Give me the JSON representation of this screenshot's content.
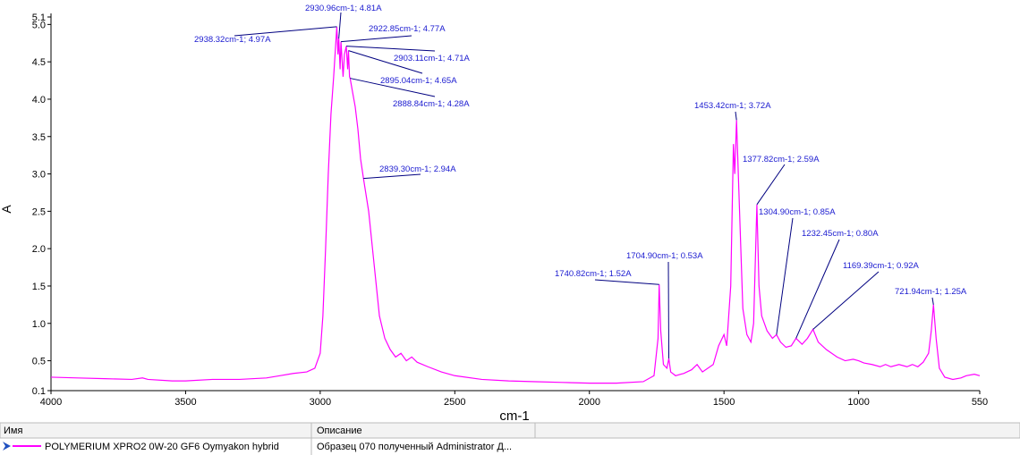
{
  "chart_data": {
    "type": "line",
    "xlabel": "cm-1",
    "ylabel": "A",
    "xlim": [
      4000,
      550
    ],
    "ylim": [
      0.1,
      5.1
    ],
    "xticks": [
      4000,
      3500,
      3000,
      2500,
      2000,
      1500,
      1000,
      550
    ],
    "yticks": [
      0.1,
      0.5,
      {
        "value": 1,
        "label": "1.0"
      },
      1.5,
      {
        "value": 2,
        "label": "2.0"
      },
      2.5,
      {
        "value": 3,
        "label": "3.0"
      },
      3.5,
      {
        "value": 4,
        "label": "4.0"
      },
      4.5,
      {
        "value": 5,
        "label": "5.0"
      },
      5.1
    ],
    "grid": false,
    "x": [
      4000,
      3900,
      3800,
      3700,
      3660,
      3640,
      3550,
      3500,
      3400,
      3300,
      3200,
      3150,
      3100,
      3050,
      3020,
      3000,
      2990,
      2980,
      2970,
      2960,
      2950,
      2938.32,
      2934,
      2930.96,
      2926,
      2922.85,
      2915,
      2910,
      2903.11,
      2898,
      2895.04,
      2891,
      2888.84,
      2880,
      2870,
      2860,
      2850,
      2839.3,
      2820,
      2800,
      2780,
      2760,
      2740,
      2720,
      2700,
      2680,
      2660,
      2640,
      2600,
      2550,
      2500,
      2400,
      2300,
      2200,
      2100,
      2000,
      1900,
      1800,
      1760,
      1745,
      1740.82,
      1735,
      1725,
      1712,
      1704.9,
      1698,
      1680,
      1650,
      1620,
      1600,
      1580,
      1540,
      1520,
      1500,
      1490,
      1475,
      1465,
      1460,
      1453.42,
      1445,
      1430,
      1415,
      1400,
      1390,
      1377.82,
      1370,
      1360,
      1340,
      1320,
      1304.9,
      1290,
      1270,
      1250,
      1232.45,
      1210,
      1190,
      1169.39,
      1150,
      1120,
      1080,
      1050,
      1020,
      1000,
      980,
      950,
      920,
      900,
      880,
      850,
      820,
      800,
      780,
      760,
      740,
      730,
      721.94,
      712,
      700,
      680,
      650,
      620,
      600,
      570,
      550
    ],
    "series": [
      {
        "name": "POLYMERIUM XPRO2 0W-20 GF6 Oymyakon hybrid",
        "description": "Образец 070 полученный Administrator Д...",
        "color": "#ff00ff",
        "values": [
          0.28,
          0.27,
          0.26,
          0.25,
          0.27,
          0.25,
          0.23,
          0.23,
          0.25,
          0.25,
          0.27,
          0.3,
          0.33,
          0.35,
          0.4,
          0.6,
          1.1,
          2.0,
          3.0,
          3.8,
          4.3,
          4.97,
          4.6,
          4.81,
          4.4,
          4.77,
          4.3,
          4.6,
          4.71,
          4.4,
          4.65,
          4.3,
          4.28,
          4.1,
          3.9,
          3.6,
          3.2,
          2.94,
          2.5,
          1.8,
          1.1,
          0.8,
          0.65,
          0.55,
          0.6,
          0.5,
          0.55,
          0.48,
          0.42,
          0.35,
          0.3,
          0.25,
          0.23,
          0.22,
          0.21,
          0.2,
          0.2,
          0.22,
          0.3,
          0.8,
          1.52,
          0.9,
          0.45,
          0.4,
          0.53,
          0.35,
          0.3,
          0.33,
          0.38,
          0.45,
          0.35,
          0.45,
          0.7,
          0.85,
          0.7,
          1.5,
          3.4,
          3.0,
          3.72,
          2.8,
          1.2,
          0.85,
          0.75,
          1.0,
          2.59,
          1.5,
          1.1,
          0.9,
          0.8,
          0.85,
          0.75,
          0.68,
          0.7,
          0.8,
          0.72,
          0.8,
          0.92,
          0.75,
          0.65,
          0.55,
          0.5,
          0.52,
          0.5,
          0.47,
          0.45,
          0.42,
          0.45,
          0.42,
          0.45,
          0.42,
          0.45,
          0.42,
          0.48,
          0.6,
          0.9,
          1.25,
          0.8,
          0.4,
          0.28,
          0.25,
          0.27,
          0.3,
          0.32,
          0.3
        ]
      }
    ],
    "annotations": [
      {
        "x": 2938.32,
        "y": 4.97,
        "label": "2938.32cm-1; 4.97A"
      },
      {
        "x": 2930.96,
        "y": 4.81,
        "label": "2930.96cm-1; 4.81A"
      },
      {
        "x": 2922.85,
        "y": 4.77,
        "label": "2922.85cm-1; 4.77A"
      },
      {
        "x": 2903.11,
        "y": 4.71,
        "label": "2903.11cm-1; 4.71A"
      },
      {
        "x": 2895.04,
        "y": 4.65,
        "label": "2895.04cm-1; 4.65A"
      },
      {
        "x": 2888.84,
        "y": 4.28,
        "label": "2888.84cm-1; 4.28A"
      },
      {
        "x": 2839.3,
        "y": 2.94,
        "label": "2839.30cm-1; 2.94A"
      },
      {
        "x": 1740.82,
        "y": 1.52,
        "label": "1740.82cm-1; 1.52A"
      },
      {
        "x": 1704.9,
        "y": 0.53,
        "label": "1704.90cm-1; 0.53A"
      },
      {
        "x": 1453.42,
        "y": 3.72,
        "label": "1453.42cm-1; 3.72A"
      },
      {
        "x": 1377.82,
        "y": 2.59,
        "label": "1377.82cm-1; 2.59A"
      },
      {
        "x": 1304.9,
        "y": 0.85,
        "label": "1304.90cm-1; 0.85A"
      },
      {
        "x": 1232.45,
        "y": 0.8,
        "label": "1232.45cm-1; 0.80A"
      },
      {
        "x": 1169.39,
        "y": 0.92,
        "label": "1169.39cm-1; 0.92A"
      },
      {
        "x": 721.94,
        "y": 1.25,
        "label": "721.94cm-1; 1.25A"
      }
    ],
    "legend_columns": [
      "Имя",
      "Описание"
    ]
  }
}
